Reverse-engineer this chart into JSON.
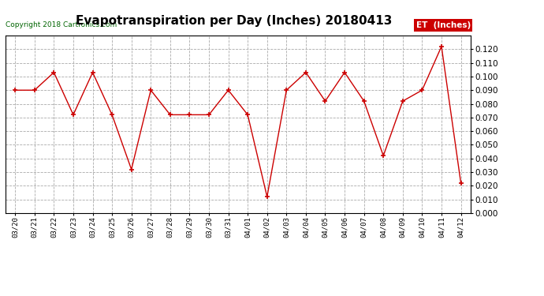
{
  "title": "Evapotranspiration per Day (Inches) 20180413",
  "copyright": "Copyright 2018 Cartronics.com",
  "legend_label": "ET  (Inches)",
  "x_labels": [
    "03/20",
    "03/21",
    "03/22",
    "03/23",
    "03/24",
    "03/25",
    "03/26",
    "03/27",
    "03/28",
    "03/29",
    "03/30",
    "03/31",
    "04/01",
    "04/02",
    "04/03",
    "04/04",
    "04/05",
    "04/06",
    "04/07",
    "04/08",
    "04/09",
    "04/10",
    "04/11",
    "04/12"
  ],
  "y_values": [
    0.09,
    0.09,
    0.103,
    0.072,
    0.103,
    0.072,
    0.032,
    0.09,
    0.072,
    0.072,
    0.072,
    0.09,
    0.072,
    0.012,
    0.09,
    0.103,
    0.082,
    0.103,
    0.082,
    0.042,
    0.082,
    0.09,
    0.122,
    0.022
  ],
  "ylim": [
    0.0,
    0.13
  ],
  "yticks": [
    0.0,
    0.01,
    0.02,
    0.03,
    0.04,
    0.05,
    0.06,
    0.07,
    0.08,
    0.09,
    0.1,
    0.11,
    0.12
  ],
  "line_color": "#cc0000",
  "marker_color": "#cc0000",
  "bg_color": "#ffffff",
  "grid_color": "#aaaaaa",
  "title_fontsize": 11,
  "copyright_color": "#006400",
  "legend_bg": "#cc0000",
  "legend_text_color": "#ffffff"
}
